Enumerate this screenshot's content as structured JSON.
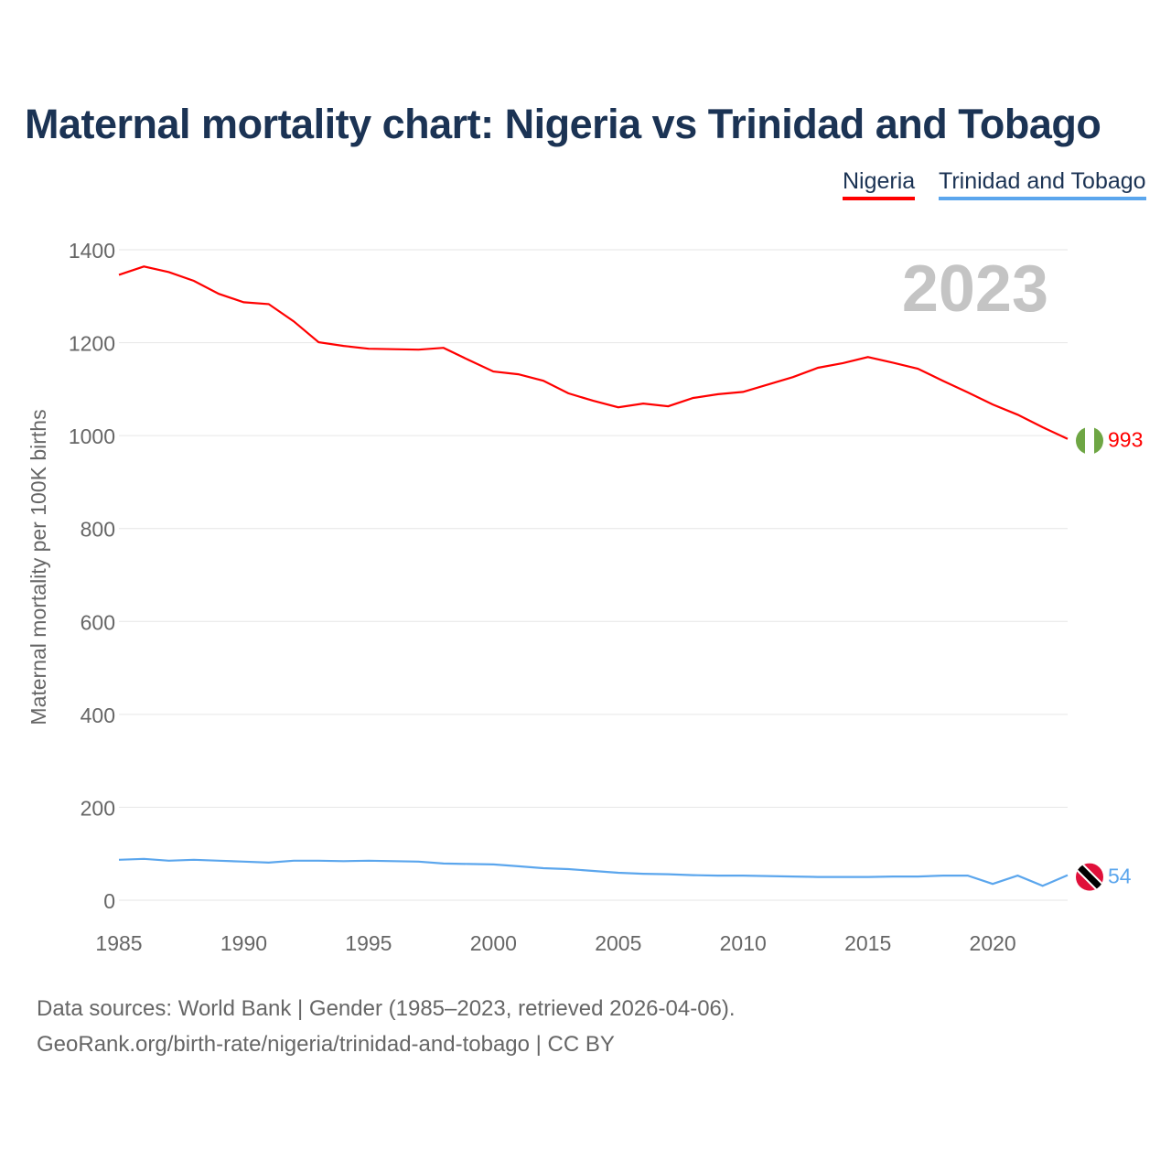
{
  "chart_data": {
    "type": "line",
    "title": "Maternal mortality chart: Nigeria vs Trinidad and Tobago",
    "ylabel": "Maternal mortality per 100K births",
    "xlabel": "",
    "year_label": "2023",
    "xlim": [
      1985,
      2023
    ],
    "ylim": [
      0,
      1400
    ],
    "x_ticks": [
      "1985",
      "1990",
      "1995",
      "2000",
      "2005",
      "2010",
      "2015",
      "2020"
    ],
    "y_ticks": [
      "0",
      "200",
      "400",
      "600",
      "800",
      "1000",
      "1200",
      "1400"
    ],
    "grid": true,
    "legend_position": "top-right",
    "x": [
      1985,
      1986,
      1987,
      1988,
      1989,
      1990,
      1991,
      1992,
      1993,
      1994,
      1995,
      1996,
      1997,
      1998,
      1999,
      2000,
      2001,
      2002,
      2003,
      2004,
      2005,
      2006,
      2007,
      2008,
      2009,
      2010,
      2011,
      2012,
      2013,
      2014,
      2015,
      2016,
      2017,
      2018,
      2019,
      2020,
      2021,
      2022,
      2023
    ],
    "series": [
      {
        "name": "Nigeria",
        "color": "#ff0000",
        "end_label": "993",
        "values": [
          1346,
          1364,
          1352,
          1333,
          1305,
          1287,
          1283,
          1246,
          1201,
          1193,
          1187,
          1186,
          1185,
          1189,
          1163,
          1138,
          1132,
          1118,
          1091,
          1075,
          1061,
          1069,
          1063,
          1081,
          1089,
          1094,
          1110,
          1126,
          1146,
          1156,
          1169,
          1157,
          1144,
          1118,
          1093,
          1067,
          1045,
          1018,
          993
        ]
      },
      {
        "name": "Trinidad and Tobago",
        "color": "#5ba6ed",
        "end_label": "54",
        "values": [
          87,
          89,
          85,
          87,
          85,
          83,
          81,
          85,
          85,
          84,
          85,
          84,
          83,
          79,
          78,
          77,
          73,
          69,
          67,
          63,
          59,
          57,
          56,
          54,
          53,
          53,
          52,
          51,
          50,
          50,
          50,
          51,
          51,
          53,
          53,
          35,
          53,
          31,
          54
        ]
      }
    ]
  },
  "footer": {
    "line1": "Data sources: World Bank | Gender (1985–2023, retrieved 2026-04-06).",
    "line2": "GeoRank.org/birth-rate/nigeria/trinidad-and-tobago | CC BY"
  }
}
